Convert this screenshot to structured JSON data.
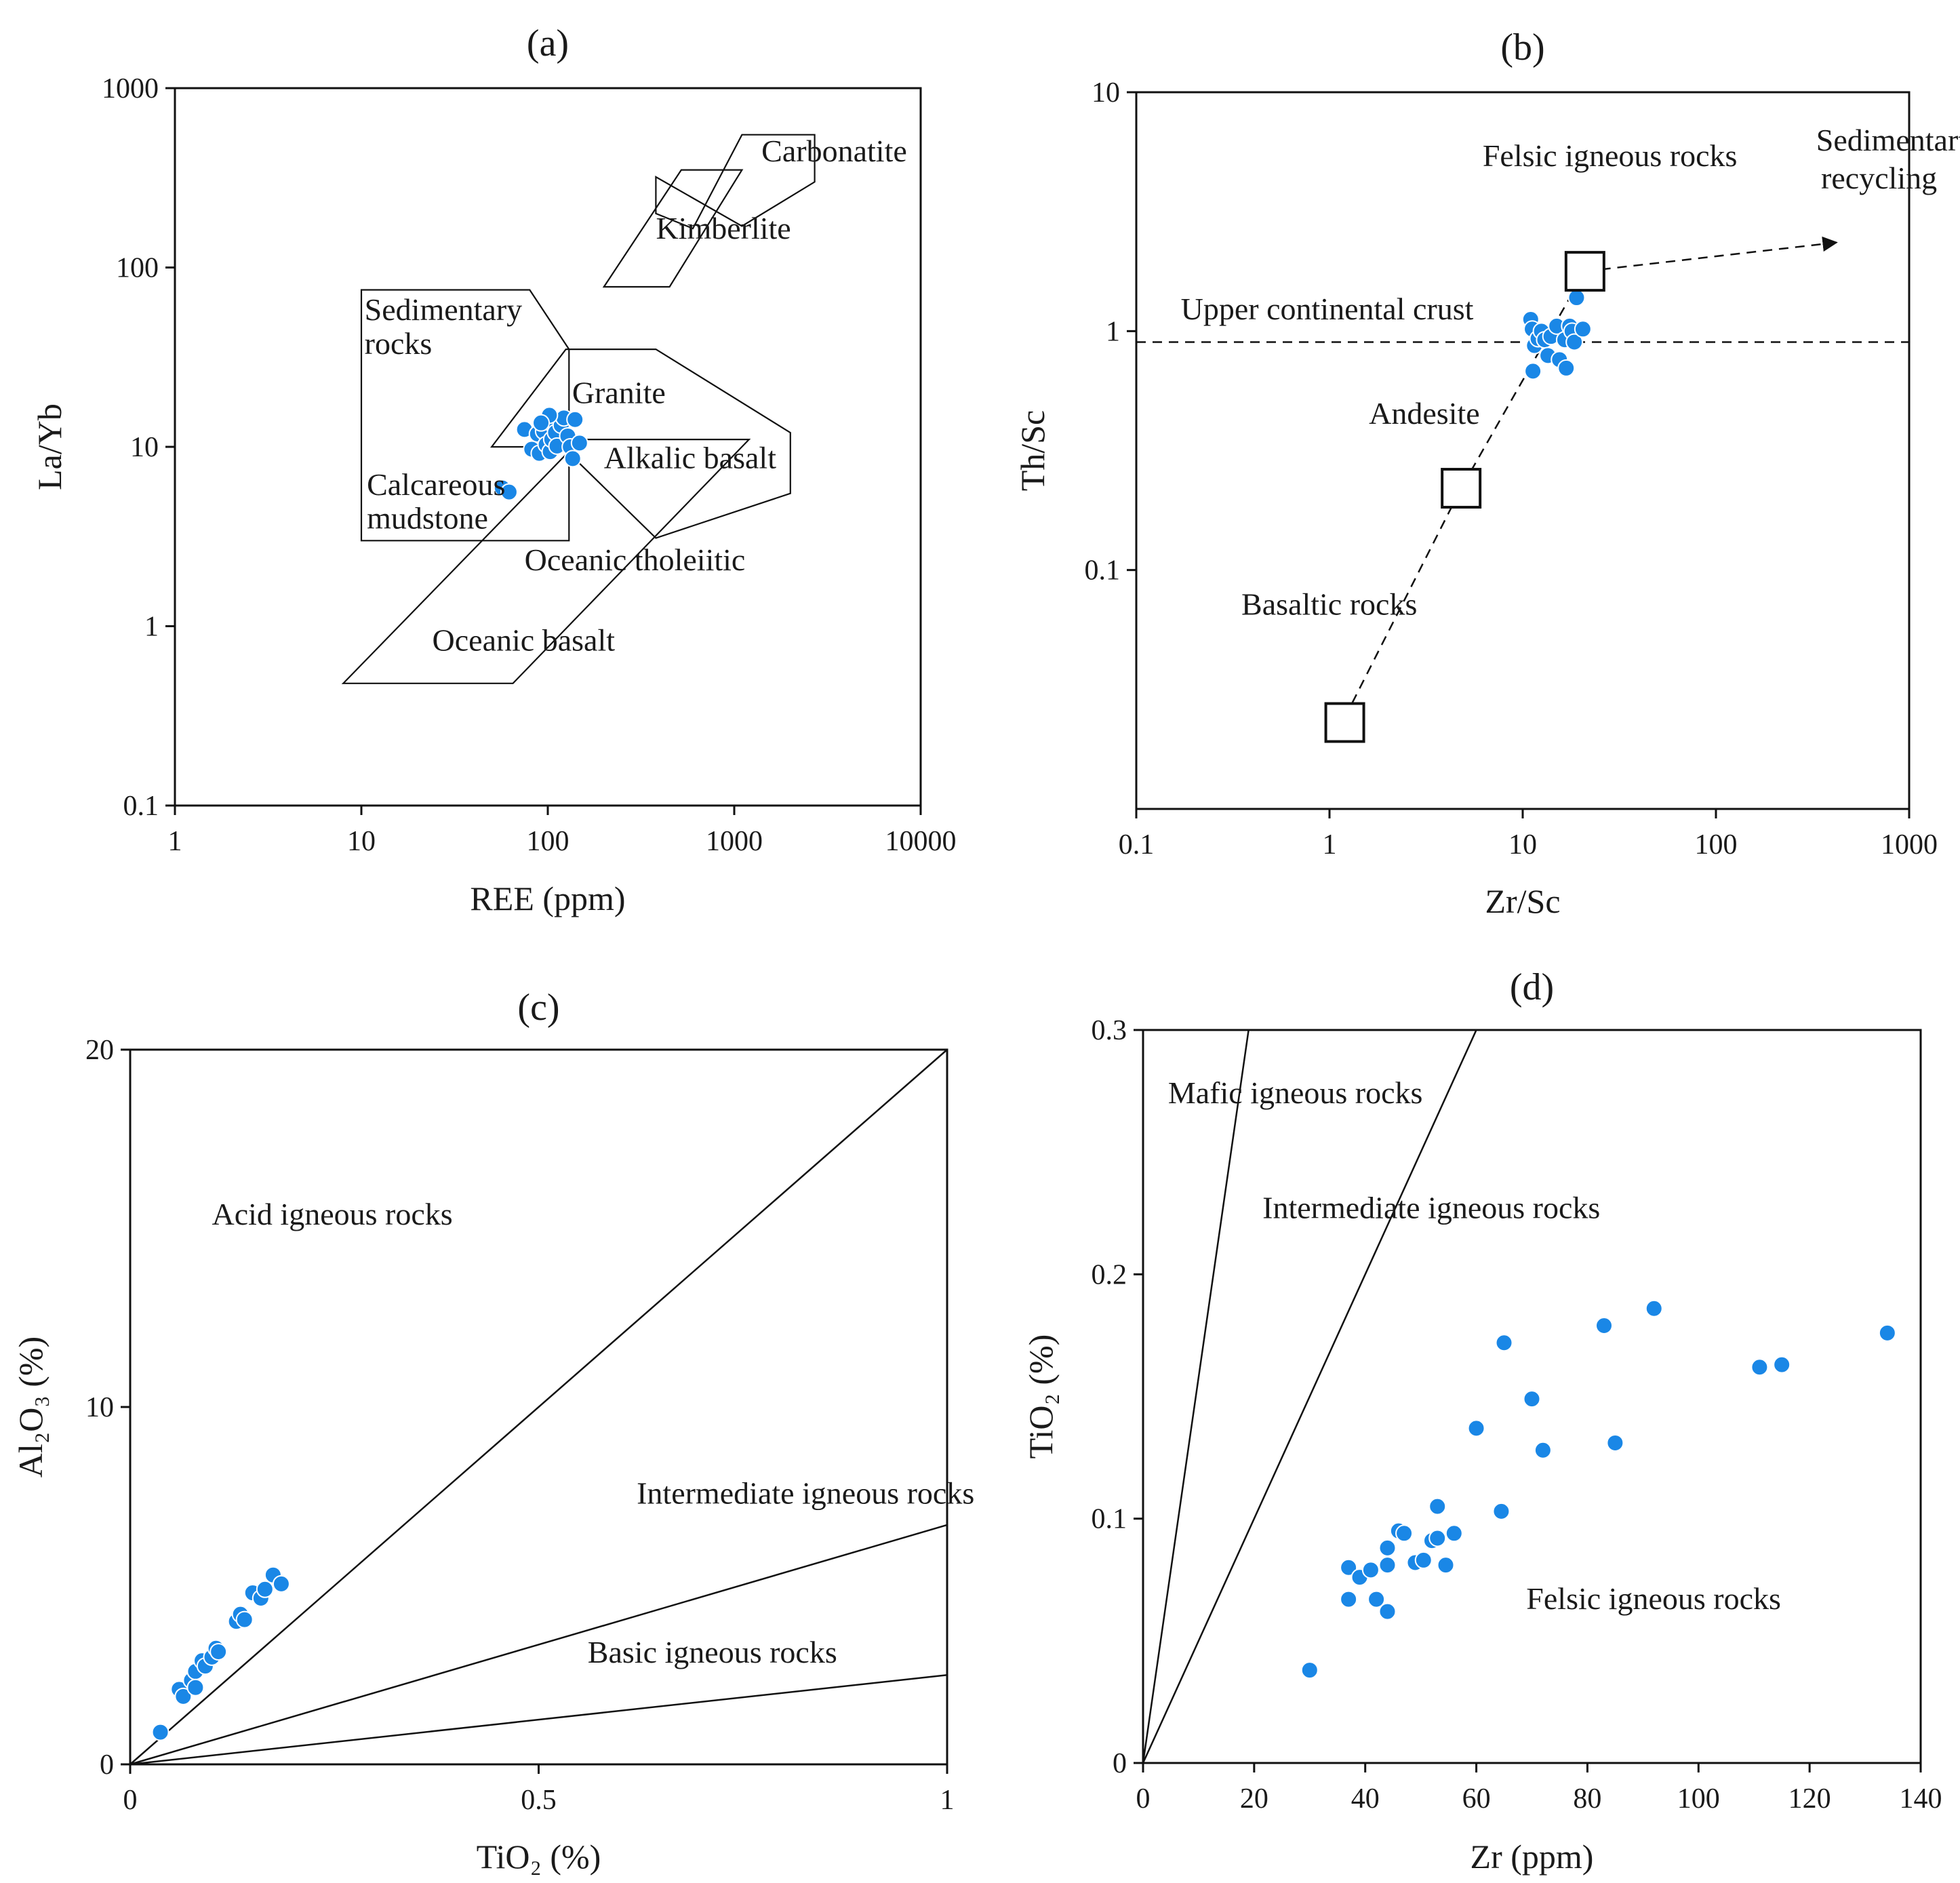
{
  "chart_data": [
    {
      "id": "a",
      "type": "scatter",
      "title": "(a)",
      "xlabel": "REE (ppm)",
      "ylabel": "La/Yb",
      "xscale": "log",
      "yscale": "log",
      "xlim": [
        1,
        10000
      ],
      "ylim": [
        0.1,
        1000
      ],
      "xticks": [
        {
          "v": 1,
          "label": "1"
        },
        {
          "v": 10,
          "label": "10"
        },
        {
          "v": 100,
          "label": "100"
        },
        {
          "v": 1000,
          "label": "1000"
        },
        {
          "v": 10000,
          "label": "10000"
        }
      ],
      "yticks": [
        {
          "v": 0.1,
          "label": "0.1"
        },
        {
          "v": 1,
          "label": "1"
        },
        {
          "v": 10,
          "label": "10"
        },
        {
          "v": 100,
          "label": "100"
        },
        {
          "v": 1000,
          "label": "1000"
        }
      ],
      "fields": [
        {
          "name": "Carbonatite",
          "polygon": [
            [
              380,
              320
            ],
            [
              380,
              200
            ],
            [
              600,
              165
            ],
            [
              1100,
              550
            ],
            [
              2700,
              550
            ],
            [
              2700,
              300
            ],
            [
              1100,
              170
            ]
          ]
        },
        {
          "name": "Kimberlite",
          "polygon": [
            [
              200,
              78
            ],
            [
              520,
              350
            ],
            [
              1100,
              350
            ],
            [
              450,
              78
            ]
          ]
        },
        {
          "name": "Sedimentary rocks",
          "polygon": [
            [
              10,
              3
            ],
            [
              10,
              75
            ],
            [
              80,
              75
            ],
            [
              130,
              35
            ],
            [
              130,
              3
            ]
          ]
        },
        {
          "name": "Granite",
          "polygon": [
            [
              50,
              10
            ],
            [
              125,
              35
            ],
            [
              380,
              35
            ],
            [
              2000,
              12
            ],
            [
              2000,
              5.5
            ],
            [
              380,
              3.1
            ],
            [
              120,
              10
            ]
          ]
        },
        {
          "name": "Oceanic basalt",
          "polygon": [
            [
              8,
              0.48
            ],
            [
              65,
              0.48
            ],
            [
              1200,
              11
            ],
            [
              150,
              11
            ]
          ]
        }
      ],
      "labels": [
        {
          "text": "Carbonatite",
          "x": 1400,
          "y": 390
        },
        {
          "text": "Kimberlite",
          "x": 380,
          "y": 145
        },
        {
          "text": "Sedimentary",
          "x": 10.4,
          "y": 51
        },
        {
          "text": "rocks",
          "x": 10.4,
          "y": 33
        },
        {
          "text": "Granite",
          "x": 135,
          "y": 17.5
        },
        {
          "text": "Alkalic basalt",
          "x": 200,
          "y": 7.6
        },
        {
          "text": "Calcareous",
          "x": 10.7,
          "y": 5.4
        },
        {
          "text": "mudstone",
          "x": 10.7,
          "y": 3.5
        },
        {
          "text": "Oceanic tholeiitic",
          "x": 75,
          "y": 2.05
        },
        {
          "text": "Oceanic basalt",
          "x": 24,
          "y": 0.73
        }
      ],
      "points": [
        {
          "x": 75,
          "y": 12.5
        },
        {
          "x": 82,
          "y": 9.7
        },
        {
          "x": 88,
          "y": 11.8
        },
        {
          "x": 90,
          "y": 9.2
        },
        {
          "x": 95,
          "y": 12.2
        },
        {
          "x": 98,
          "y": 10.3
        },
        {
          "x": 100,
          "y": 13.8
        },
        {
          "x": 103,
          "y": 9.4
        },
        {
          "x": 105,
          "y": 11.0
        },
        {
          "x": 110,
          "y": 12.0
        },
        {
          "x": 112,
          "y": 10.1
        },
        {
          "x": 118,
          "y": 13.2
        },
        {
          "x": 122,
          "y": 14.5
        },
        {
          "x": 128,
          "y": 11.5
        },
        {
          "x": 132,
          "y": 10.0
        },
        {
          "x": 136,
          "y": 8.6
        },
        {
          "x": 140,
          "y": 14.2
        },
        {
          "x": 148,
          "y": 10.5
        },
        {
          "x": 102,
          "y": 15.0
        },
        {
          "x": 92,
          "y": 13.6
        },
        {
          "x": 57,
          "y": 5.9
        },
        {
          "x": 62,
          "y": 5.6
        }
      ]
    },
    {
      "id": "b",
      "type": "scatter",
      "title": "(b)",
      "xlabel": "Zr/Sc",
      "ylabel": "Th/Sc",
      "xscale": "log",
      "yscale": "log",
      "xlim": [
        0.1,
        1000
      ],
      "ylim": [
        0.01,
        10
      ],
      "xticks": [
        {
          "v": 0.1,
          "label": "0.1"
        },
        {
          "v": 1,
          "label": "1"
        },
        {
          "v": 10,
          "label": "10"
        },
        {
          "v": 100,
          "label": "100"
        },
        {
          "v": 1000,
          "label": "1000"
        }
      ],
      "yticks": [
        {
          "v": 0.1,
          "label": "0.1"
        },
        {
          "v": 1,
          "label": "1"
        },
        {
          "v": 10,
          "label": "10"
        }
      ],
      "ucc_th_sc": 0.9,
      "trend_line": [
        [
          1.1,
          0.021
        ],
        [
          4.8,
          0.22
        ],
        [
          21,
          1.78
        ]
      ],
      "recycling_arrow": [
        [
          21,
          1.78
        ],
        [
          420,
          2.35
        ]
      ],
      "reference_boxes": [
        {
          "name": "Basaltic rocks",
          "x": 1.2,
          "y": 0.023
        },
        {
          "name": "Andesite",
          "x": 4.8,
          "y": 0.22
        },
        {
          "name": "Felsic igneous rocks",
          "x": 21,
          "y": 1.78
        }
      ],
      "labels": [
        {
          "text": "Felsic igneous rocks",
          "x": 6.2,
          "y": 4.9
        },
        {
          "text": "Sedimentarty",
          "x": 330,
          "y": 5.7
        },
        {
          "text": "recycling",
          "x": 350,
          "y": 3.95
        },
        {
          "text": "Upper continental crust",
          "x": 0.17,
          "y": 1.12
        },
        {
          "text": "Andesite",
          "x": 1.6,
          "y": 0.41
        },
        {
          "text": "Basaltic rocks",
          "x": 0.35,
          "y": 0.065
        }
      ],
      "points": [
        {
          "x": 11.0,
          "y": 1.12
        },
        {
          "x": 11.2,
          "y": 1.02
        },
        {
          "x": 11.5,
          "y": 0.87
        },
        {
          "x": 11.3,
          "y": 0.68
        },
        {
          "x": 12.0,
          "y": 0.93
        },
        {
          "x": 12.5,
          "y": 1.0
        },
        {
          "x": 13.0,
          "y": 0.92
        },
        {
          "x": 13.5,
          "y": 0.79
        },
        {
          "x": 14.0,
          "y": 0.95
        },
        {
          "x": 15.0,
          "y": 1.05
        },
        {
          "x": 15.5,
          "y": 0.76
        },
        {
          "x": 16.5,
          "y": 0.92
        },
        {
          "x": 16.8,
          "y": 0.7
        },
        {
          "x": 17.5,
          "y": 1.05
        },
        {
          "x": 18.0,
          "y": 1.0
        },
        {
          "x": 18.5,
          "y": 0.9
        },
        {
          "x": 19.0,
          "y": 1.38
        },
        {
          "x": 20.5,
          "y": 1.02
        }
      ]
    },
    {
      "id": "c",
      "type": "scatter",
      "title": "(c)",
      "xlabel": "TiO₂ (%)",
      "ylabel": "Al₂O₃ (%)",
      "xlim": [
        0,
        1
      ],
      "ylim": [
        0,
        20
      ],
      "xticks": [
        {
          "v": 0,
          "label": "0"
        },
        {
          "v": 0.5,
          "label": "0.5"
        },
        {
          "v": 1,
          "label": "1"
        }
      ],
      "yticks": [
        {
          "v": 0,
          "label": "0"
        },
        {
          "v": 10,
          "label": "10"
        },
        {
          "v": 20,
          "label": "20"
        }
      ],
      "boundary_lines": [
        [
          [
            0,
            0
          ],
          [
            1,
            20
          ]
        ],
        [
          [
            0,
            0
          ],
          [
            1,
            6.7
          ]
        ],
        [
          [
            0,
            0
          ],
          [
            1,
            2.5
          ]
        ]
      ],
      "labels": [
        {
          "text": "Acid igneous rocks",
          "x": 0.1,
          "y": 15.1
        },
        {
          "text": "Intermediate igneous rocks",
          "x": 0.62,
          "y": 7.3
        },
        {
          "text": "Basic igneous rocks",
          "x": 0.56,
          "y": 2.85
        }
      ],
      "points": [
        {
          "x": 0.037,
          "y": 0.9
        },
        {
          "x": 0.06,
          "y": 2.1
        },
        {
          "x": 0.065,
          "y": 1.9
        },
        {
          "x": 0.075,
          "y": 2.35
        },
        {
          "x": 0.08,
          "y": 2.6
        },
        {
          "x": 0.08,
          "y": 2.15
        },
        {
          "x": 0.088,
          "y": 2.9
        },
        {
          "x": 0.092,
          "y": 2.75
        },
        {
          "x": 0.1,
          "y": 3.0
        },
        {
          "x": 0.105,
          "y": 3.25
        },
        {
          "x": 0.108,
          "y": 3.15
        },
        {
          "x": 0.13,
          "y": 4.0
        },
        {
          "x": 0.135,
          "y": 4.2
        },
        {
          "x": 0.14,
          "y": 4.05
        },
        {
          "x": 0.15,
          "y": 4.8
        },
        {
          "x": 0.16,
          "y": 4.65
        },
        {
          "x": 0.165,
          "y": 4.9
        },
        {
          "x": 0.175,
          "y": 5.3
        },
        {
          "x": 0.185,
          "y": 5.05
        }
      ]
    },
    {
      "id": "d",
      "type": "scatter",
      "title": "(d)",
      "xlabel": "Zr (ppm)",
      "ylabel": "TiO₂ (%)",
      "xlim": [
        0,
        140
      ],
      "ylim": [
        0,
        0.3
      ],
      "xticks": [
        {
          "v": 0,
          "label": "0"
        },
        {
          "v": 20,
          "label": "20"
        },
        {
          "v": 40,
          "label": "40"
        },
        {
          "v": 60,
          "label": "60"
        },
        {
          "v": 80,
          "label": "80"
        },
        {
          "v": 100,
          "label": "100"
        },
        {
          "v": 120,
          "label": "120"
        },
        {
          "v": 140,
          "label": "140"
        }
      ],
      "yticks": [
        {
          "v": 0,
          "label": "0"
        },
        {
          "v": 0.1,
          "label": "0.1"
        },
        {
          "v": 0.2,
          "label": "0.2"
        },
        {
          "v": 0.3,
          "label": "0.3"
        }
      ],
      "boundary_lines": [
        [
          [
            0,
            0
          ],
          [
            19,
            0.3
          ]
        ],
        [
          [
            0,
            0
          ],
          [
            60,
            0.3
          ]
        ]
      ],
      "labels": [
        {
          "text": "Mafic igneous rocks",
          "x": 4.5,
          "y": 0.27
        },
        {
          "text": "Intermediate igneous rocks",
          "x": 21.5,
          "y": 0.223
        },
        {
          "text": "Felsic igneous rocks",
          "x": 69,
          "y": 0.063
        }
      ],
      "points": [
        {
          "x": 30,
          "y": 0.038
        },
        {
          "x": 37,
          "y": 0.08
        },
        {
          "x": 37,
          "y": 0.067
        },
        {
          "x": 39,
          "y": 0.076
        },
        {
          "x": 41,
          "y": 0.079
        },
        {
          "x": 42,
          "y": 0.067
        },
        {
          "x": 44,
          "y": 0.088
        },
        {
          "x": 44,
          "y": 0.081
        },
        {
          "x": 44,
          "y": 0.062
        },
        {
          "x": 46,
          "y": 0.095
        },
        {
          "x": 47,
          "y": 0.094
        },
        {
          "x": 49,
          "y": 0.082
        },
        {
          "x": 50.5,
          "y": 0.083
        },
        {
          "x": 52,
          "y": 0.091
        },
        {
          "x": 53,
          "y": 0.105
        },
        {
          "x": 53,
          "y": 0.092
        },
        {
          "x": 54.5,
          "y": 0.081
        },
        {
          "x": 56,
          "y": 0.094
        },
        {
          "x": 60,
          "y": 0.137
        },
        {
          "x": 64.5,
          "y": 0.103
        },
        {
          "x": 65,
          "y": 0.172
        },
        {
          "x": 70,
          "y": 0.149
        },
        {
          "x": 72,
          "y": 0.128
        },
        {
          "x": 83,
          "y": 0.179
        },
        {
          "x": 85,
          "y": 0.131
        },
        {
          "x": 92,
          "y": 0.186
        },
        {
          "x": 111,
          "y": 0.162
        },
        {
          "x": 115,
          "y": 0.163
        },
        {
          "x": 134,
          "y": 0.176
        }
      ]
    }
  ]
}
